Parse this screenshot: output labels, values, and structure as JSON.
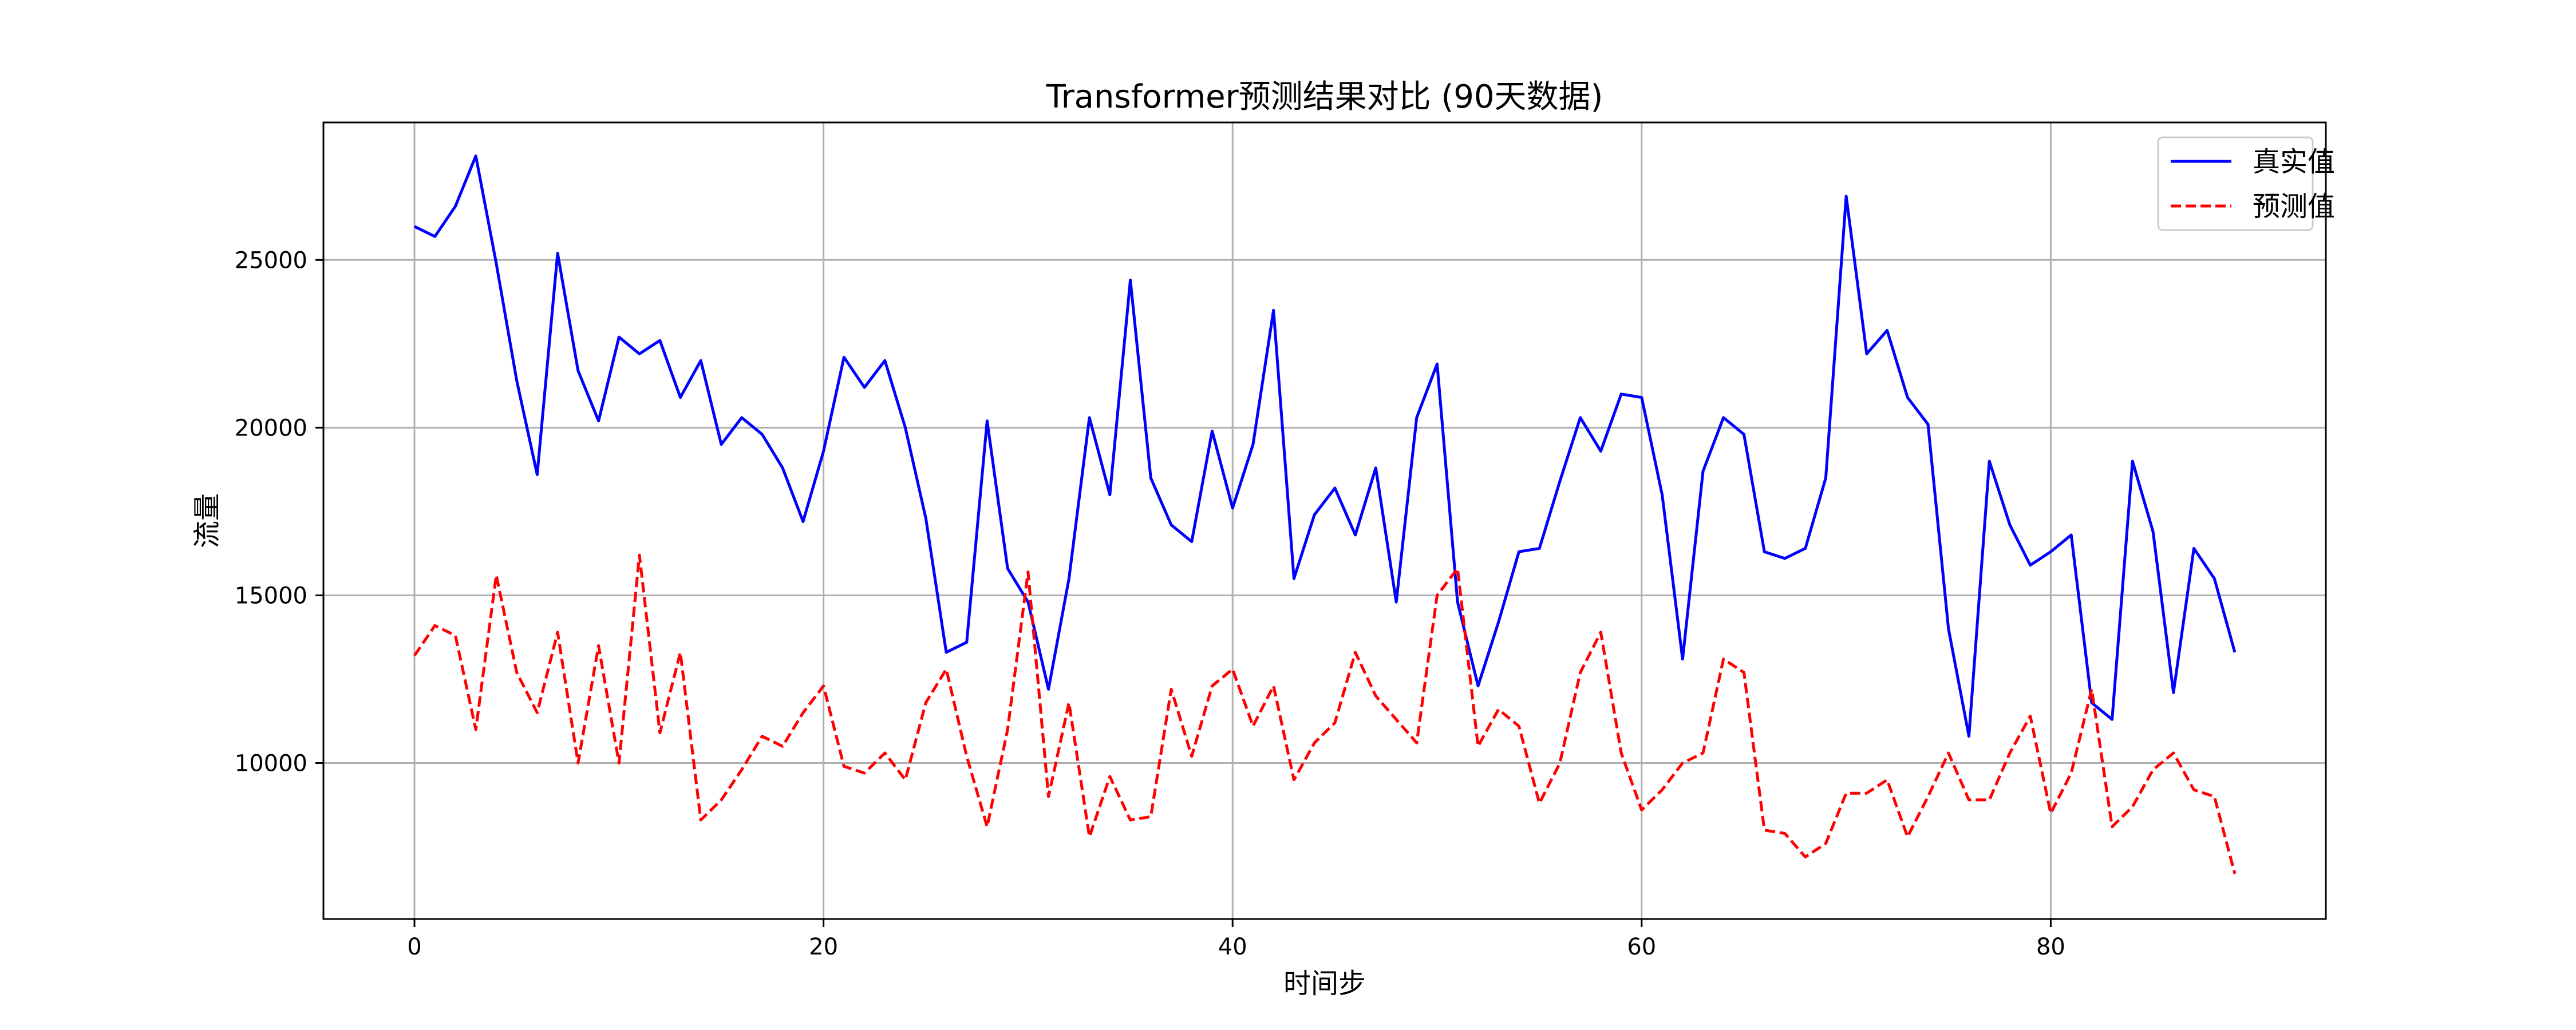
{
  "chart_data": {
    "type": "line",
    "title": "Transformer预测结果对比 (90天数据)",
    "xlabel": "时间步",
    "ylabel": "流量",
    "xlim": [
      -4.45,
      93.45
    ],
    "ylim": [
      5350,
      29100
    ],
    "x_ticks": [
      0,
      20,
      40,
      60,
      80
    ],
    "y_ticks": [
      10000,
      15000,
      20000,
      25000
    ],
    "grid": true,
    "legend_position": "top-right",
    "series": [
      {
        "name": "真实值",
        "color": "#0000ff",
        "style": "solid",
        "x": [
          0,
          1,
          2,
          3,
          4,
          5,
          6,
          7,
          8,
          9,
          10,
          11,
          12,
          13,
          14,
          15,
          16,
          17,
          18,
          19,
          20,
          21,
          22,
          23,
          24,
          25,
          26,
          27,
          28,
          29,
          30,
          31,
          32,
          33,
          34,
          35,
          36,
          37,
          38,
          39,
          40,
          41,
          42,
          43,
          44,
          45,
          46,
          47,
          48,
          49,
          50,
          51,
          52,
          53,
          54,
          55,
          56,
          57,
          58,
          59,
          60,
          61,
          62,
          63,
          64,
          65,
          66,
          67,
          68,
          69,
          70,
          71,
          72,
          73,
          74,
          75,
          76,
          77,
          78,
          79,
          80,
          81,
          82,
          83,
          84,
          85,
          86,
          87,
          88,
          89
        ],
        "values": [
          26000,
          25700,
          26600,
          28100,
          24900,
          21400,
          18600,
          25200,
          21700,
          20200,
          22700,
          22200,
          22600,
          20900,
          22000,
          19500,
          20300,
          19800,
          18800,
          17200,
          19300,
          22100,
          21200,
          22000,
          20000,
          17300,
          13300,
          13600,
          20200,
          15800,
          14800,
          12200,
          15500,
          20300,
          18000,
          24400,
          18500,
          17100,
          16600,
          19900,
          17600,
          19500,
          23500,
          15500,
          17400,
          18200,
          16800,
          18800,
          14800,
          20300,
          21900,
          14800,
          12300,
          14200,
          16300,
          16400,
          18400,
          20300,
          19300,
          21000,
          20900,
          18000,
          13100,
          18700,
          20300,
          19800,
          16300,
          16100,
          16400,
          18500,
          26900,
          22200,
          22900,
          20900,
          20100,
          14000,
          10800,
          19000,
          17100,
          15900,
          16300,
          16800,
          11800,
          11300,
          19000,
          16900,
          12100,
          16400,
          15500,
          13300
        ]
      },
      {
        "name": "预测值",
        "color": "#ff0000",
        "style": "dashed",
        "x": [
          0,
          1,
          2,
          3,
          4,
          5,
          6,
          7,
          8,
          9,
          10,
          11,
          12,
          13,
          14,
          15,
          16,
          17,
          18,
          19,
          20,
          21,
          22,
          23,
          24,
          25,
          26,
          27,
          28,
          29,
          30,
          31,
          32,
          33,
          34,
          35,
          36,
          37,
          38,
          39,
          40,
          41,
          42,
          43,
          44,
          45,
          46,
          47,
          48,
          49,
          50,
          51,
          52,
          53,
          54,
          55,
          56,
          57,
          58,
          59,
          60,
          61,
          62,
          63,
          64,
          65,
          66,
          67,
          68,
          69,
          70,
          71,
          72,
          73,
          74,
          75,
          76,
          77,
          78,
          79,
          80,
          81,
          82,
          83,
          84,
          85,
          86,
          87,
          88,
          89
        ],
        "values": [
          13200,
          14100,
          13800,
          11000,
          15600,
          12700,
          11500,
          13900,
          10000,
          13500,
          10000,
          16200,
          10900,
          13300,
          8300,
          8900,
          9800,
          10800,
          10500,
          11500,
          12300,
          9900,
          9700,
          10300,
          9500,
          11800,
          12800,
          10200,
          8100,
          11000,
          15700,
          9000,
          11800,
          7800,
          9600,
          8300,
          8400,
          12200,
          10200,
          12300,
          12800,
          11100,
          12300,
          9500,
          10600,
          11200,
          13300,
          12000,
          11300,
          10600,
          15000,
          15800,
          10500,
          11600,
          11100,
          8800,
          10000,
          12700,
          13900,
          10300,
          8600,
          9200,
          10000,
          10300,
          13100,
          12700,
          8000,
          7900,
          7200,
          7600,
          9100,
          9100,
          9500,
          7800,
          9000,
          10300,
          8900,
          8900,
          10300,
          11400,
          8500,
          9700,
          12200,
          8100,
          8700,
          9800,
          10300,
          9200,
          9000,
          6700
        ]
      }
    ]
  }
}
